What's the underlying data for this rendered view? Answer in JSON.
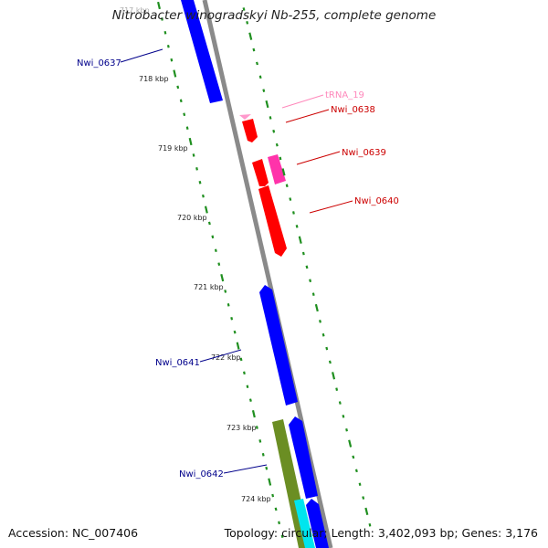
{
  "title": "Nitrobacter winogradskyi Nb-255, complete genome",
  "footer": {
    "accession": "Accession: NC_007406",
    "summary": "Topology: circular; Length: 3,402,093 bp; Genes: 3,176"
  },
  "colors": {
    "backbone": "#8a8a8a",
    "forward_gene": "#0000ff",
    "reverse_gene": "#ff0000",
    "trna": "#ff99cc",
    "magenta_gene": "#ff33aa",
    "olive_gene": "#6b8e23",
    "cyan_gene": "#00e5ee",
    "tick_dots": "#1f8f1f",
    "label_blue": "#00008b",
    "label_red": "#cc0000",
    "label_pink": "#ff88bb"
  },
  "scale": {
    "unit": "kbp",
    "labels": [
      "717 kbp",
      "718 kbp",
      "719 kbp",
      "720 kbp",
      "721 kbp",
      "722 kbp",
      "723 kbp",
      "724 kbp"
    ]
  },
  "genes": [
    {
      "name": "Nwi_0637",
      "type": "CDS",
      "strand": "forward",
      "color": "forward_gene"
    },
    {
      "name": "tRNA_19",
      "type": "tRNA",
      "strand": "reverse",
      "color": "trna"
    },
    {
      "name": "Nwi_0638",
      "type": "CDS",
      "strand": "reverse",
      "color": "reverse_gene"
    },
    {
      "name": "Nwi_0639",
      "type": "CDS",
      "strand": "reverse",
      "color": "magenta_gene"
    },
    {
      "name": "Nwi_0640",
      "type": "CDS",
      "strand": "reverse",
      "color": "reverse_gene"
    },
    {
      "name": "Nwi_0641",
      "type": "CDS",
      "strand": "forward",
      "color": "forward_gene"
    },
    {
      "name": "Nwi_0642",
      "type": "CDS",
      "strand": "forward",
      "color": "forward_gene"
    }
  ]
}
